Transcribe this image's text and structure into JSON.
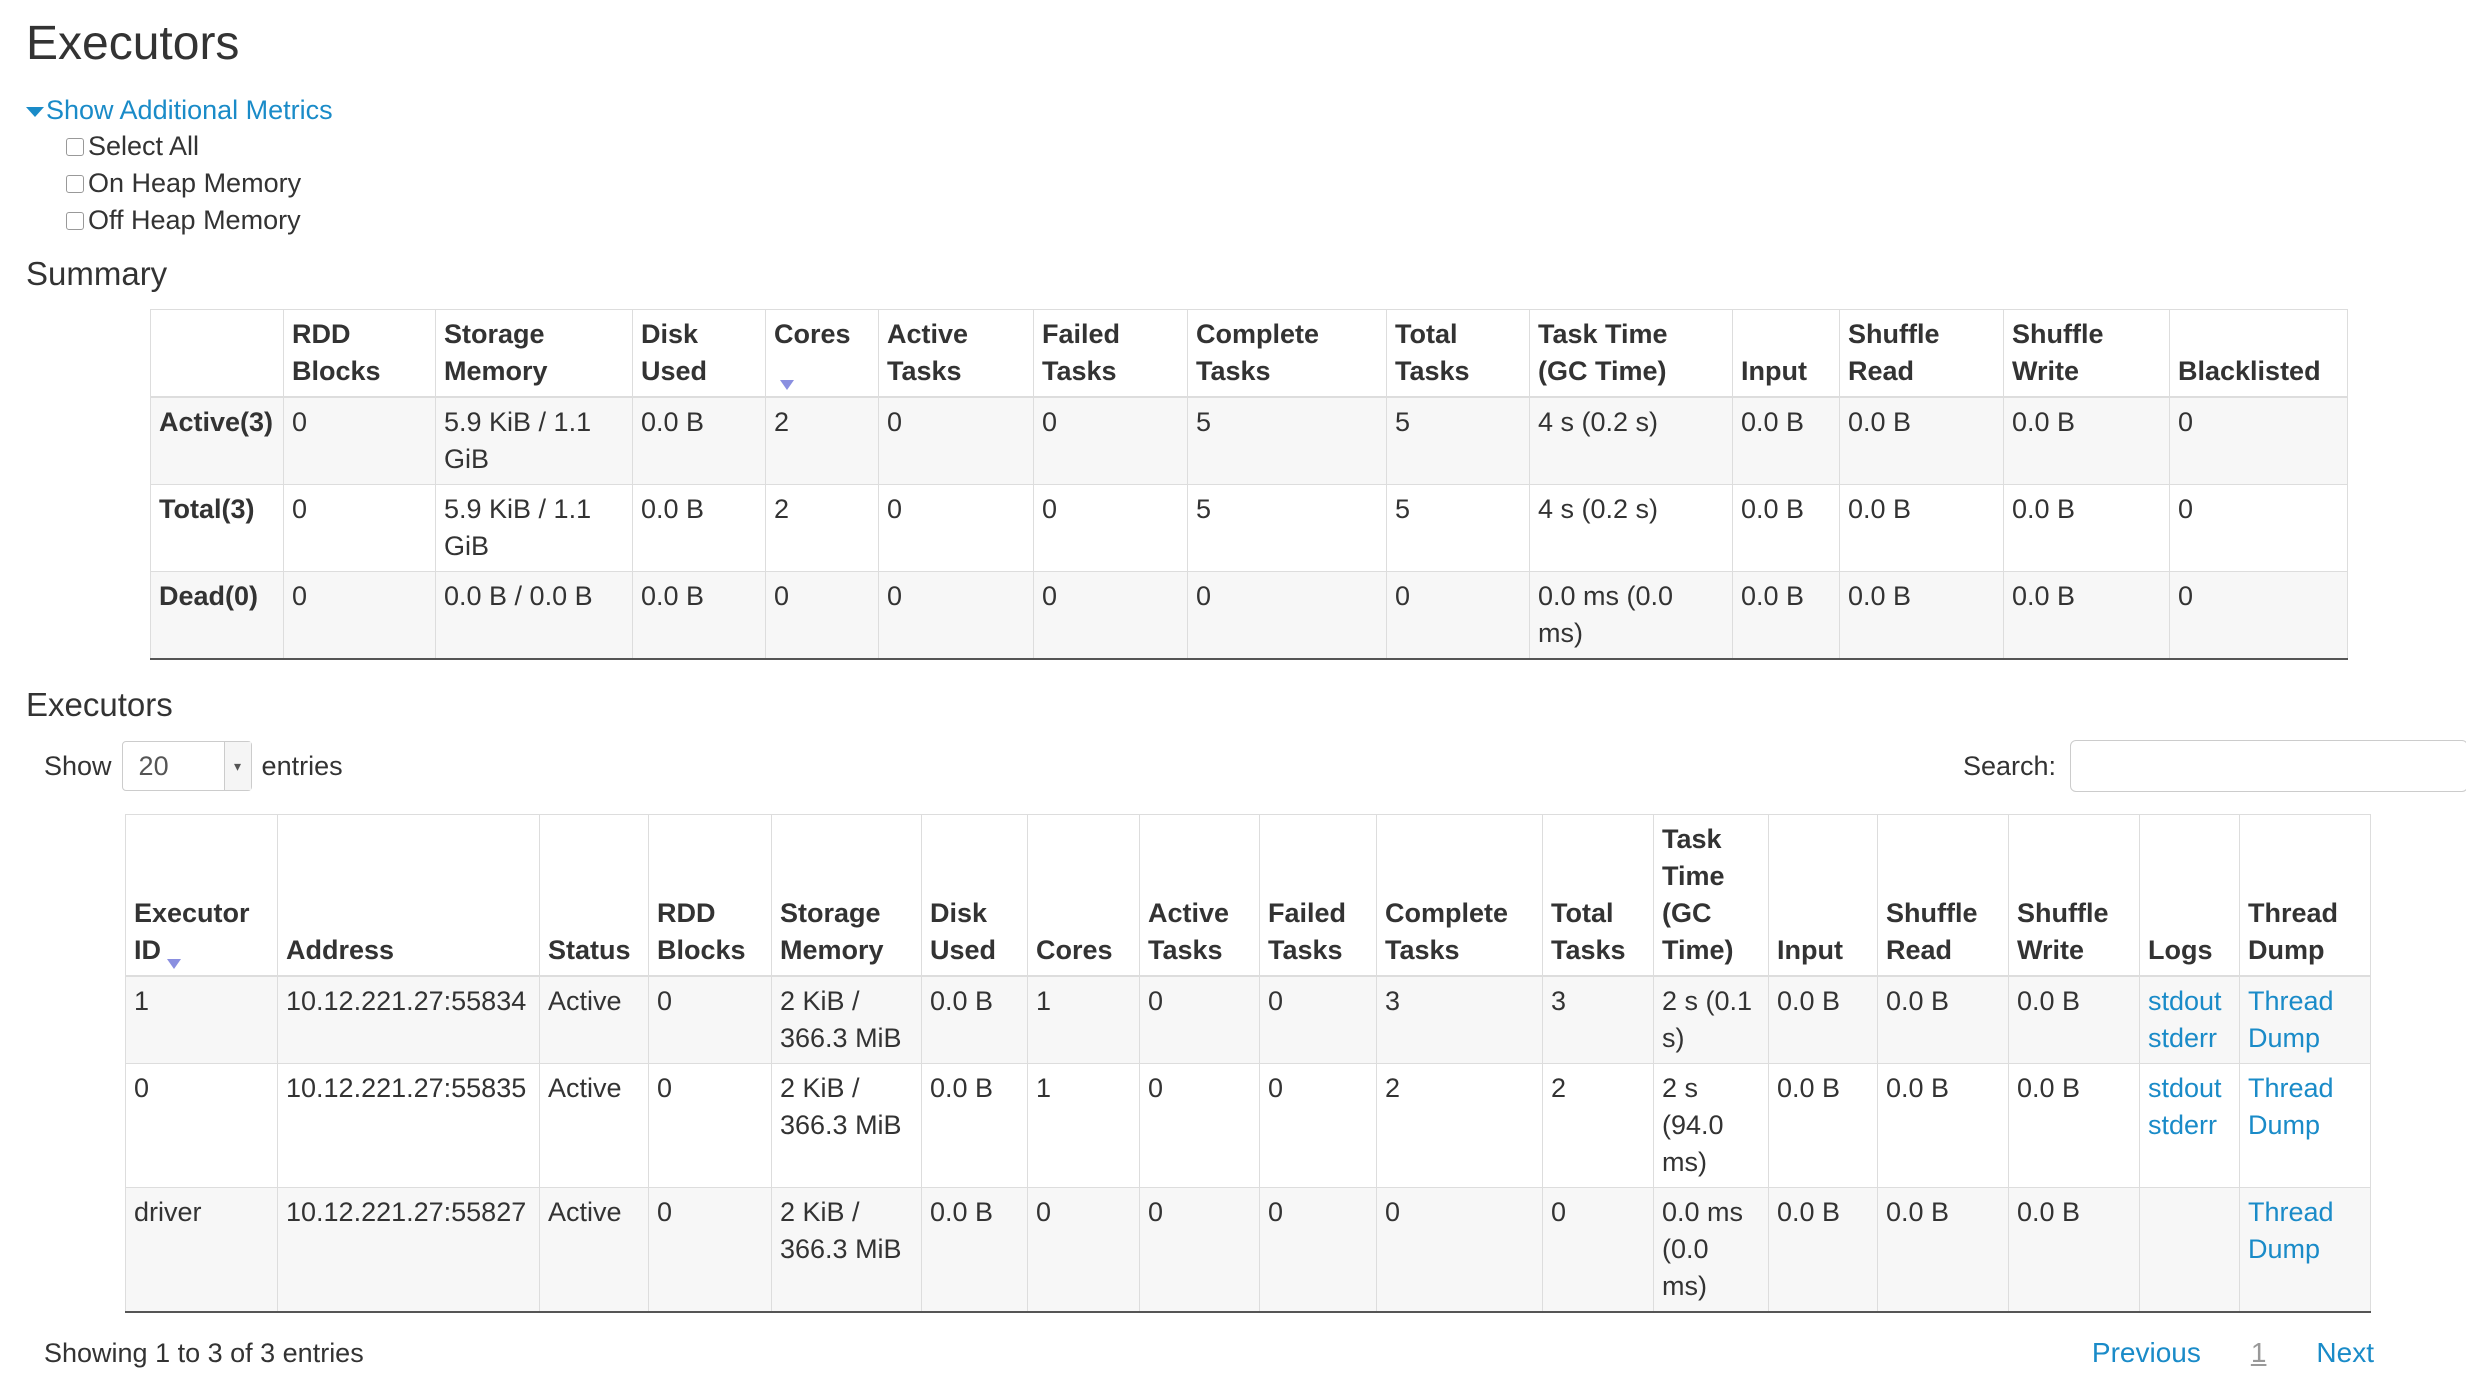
{
  "page_title": "Executors",
  "metrics": {
    "toggle_label": "Show Additional Metrics",
    "options": [
      "Select All",
      "On Heap Memory",
      "Off Heap Memory"
    ]
  },
  "summary": {
    "heading": "Summary",
    "columns": [
      "",
      "RDD Blocks",
      "Storage Memory",
      "Disk Used",
      "Cores",
      "Active Tasks",
      "Failed Tasks",
      "Complete Tasks",
      "Total Tasks",
      "Task Time (GC Time)",
      "Input",
      "Shuffle Read",
      "Shuffle Write",
      "Blacklisted"
    ],
    "sorted_column": "Cores",
    "rows": [
      [
        "Active(3)",
        "0",
        "5.9 KiB / 1.1 GiB",
        "0.0 B",
        "2",
        "0",
        "0",
        "5",
        "5",
        "4 s (0.2 s)",
        "0.0 B",
        "0.0 B",
        "0.0 B",
        "0"
      ],
      [
        "Total(3)",
        "0",
        "5.9 KiB / 1.1 GiB",
        "0.0 B",
        "2",
        "0",
        "0",
        "5",
        "5",
        "4 s (0.2 s)",
        "0.0 B",
        "0.0 B",
        "0.0 B",
        "0"
      ],
      [
        "Dead(0)",
        "0",
        "0.0 B / 0.0 B",
        "0.0 B",
        "0",
        "0",
        "0",
        "0",
        "0",
        "0.0 ms (0.0 ms)",
        "0.0 B",
        "0.0 B",
        "0.0 B",
        "0"
      ]
    ]
  },
  "executors": {
    "heading": "Executors",
    "show_label": "Show",
    "entries_value": "20",
    "entries_label": "entries",
    "search_label": "Search:",
    "search_value": "",
    "columns": [
      "Executor ID",
      "Address",
      "Status",
      "RDD Blocks",
      "Storage Memory",
      "Disk Used",
      "Cores",
      "Active Tasks",
      "Failed Tasks",
      "Complete Tasks",
      "Total Tasks",
      "Task Time (GC Time)",
      "Input",
      "Shuffle Read",
      "Shuffle Write",
      "Logs",
      "Thread Dump"
    ],
    "sorted_column": "Executor ID",
    "rows": [
      {
        "cells": [
          "1",
          "10.12.221.27:55834",
          "Active",
          "0",
          "2 KiB / 366.3 MiB",
          "0.0 B",
          "1",
          "0",
          "0",
          "3",
          "3",
          "2 s (0.1 s)",
          "0.0 B",
          "0.0 B",
          "0.0 B"
        ],
        "logs": [
          "stdout",
          "stderr"
        ],
        "thread_dump": "Thread Dump"
      },
      {
        "cells": [
          "0",
          "10.12.221.27:55835",
          "Active",
          "0",
          "2 KiB / 366.3 MiB",
          "0.0 B",
          "1",
          "0",
          "0",
          "2",
          "2",
          "2 s (94.0 ms)",
          "0.0 B",
          "0.0 B",
          "0.0 B"
        ],
        "logs": [
          "stdout",
          "stderr"
        ],
        "thread_dump": "Thread Dump"
      },
      {
        "cells": [
          "driver",
          "10.12.221.27:55827",
          "Active",
          "0",
          "2 KiB / 366.3 MiB",
          "0.0 B",
          "0",
          "0",
          "0",
          "0",
          "0",
          "0.0 ms (0.0 ms)",
          "0.0 B",
          "0.0 B",
          "0.0 B"
        ],
        "logs": [],
        "thread_dump": "Thread Dump"
      }
    ],
    "info": "Showing 1 to 3 of 3 entries",
    "pagination": {
      "previous": "Previous",
      "current": "1",
      "next": "Next"
    }
  },
  "colors": {
    "link": "#1a8bc8",
    "text": "#333333",
    "stripe": "#f7f7f7"
  }
}
